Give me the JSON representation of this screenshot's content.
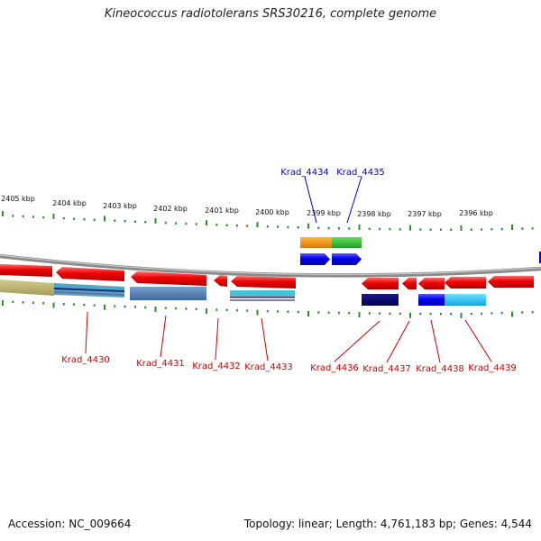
{
  "title": "Kineococcus radiotolerans SRS30216, complete genome",
  "footer": {
    "accession": "Accession: NC_009664",
    "topology": "Topology: linear; Length: 4,761,183 bp; Genes: 4,544"
  },
  "scale_labels": [
    "2405 kbp",
    "2404 kbp",
    "2403 kbp",
    "2402 kbp",
    "2401 kbp",
    "2400 kbp",
    "2399 kbp",
    "2398 kbp",
    "2397 kbp",
    "2396 kbp"
  ],
  "genes_top": [
    {
      "id": "Krad_4434",
      "color": "#0000cc"
    },
    {
      "id": "Krad_4435",
      "color": "#0000cc"
    }
  ],
  "genes_bottom": [
    {
      "id": "Krad_4430",
      "color": "#cc0000"
    },
    {
      "id": "Krad_4431",
      "color": "#cc0000"
    },
    {
      "id": "Krad_4432",
      "color": "#cc0000"
    },
    {
      "id": "Krad_4433",
      "color": "#cc0000"
    },
    {
      "id": "Krad_4436",
      "color": "#cc0000"
    },
    {
      "id": "Krad_4437",
      "color": "#cc0000"
    },
    {
      "id": "Krad_4438",
      "color": "#cc0000"
    },
    {
      "id": "Krad_4439",
      "color": "#cc0000"
    }
  ],
  "colors": {
    "backbone": "#8a8a8a",
    "tick": "#2f8f2f",
    "forward_gene": "#0000ee",
    "reverse_gene": "#ee0000",
    "label_forward": "#0000cc",
    "label_reverse": "#cc0000"
  }
}
